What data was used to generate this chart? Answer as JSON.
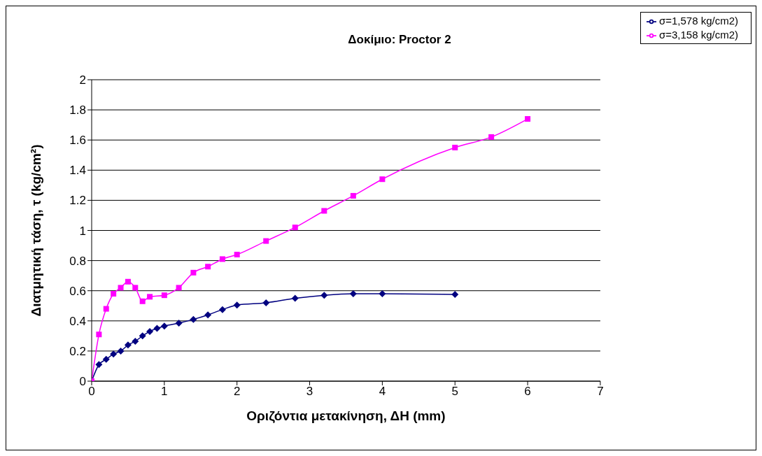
{
  "chart_data": {
    "type": "line",
    "title": "Δοκίμιο: Proctor 2",
    "xlabel": "Οριζόντια μετακίνηση, ΔΗ (mm)",
    "ylabel": "Διατμητική τάση, τ (kg/cm²)",
    "xlim": [
      0,
      7
    ],
    "xticks": [
      0,
      1,
      2,
      3,
      4,
      5,
      6,
      7
    ],
    "ylim": [
      0,
      2
    ],
    "yticks": [
      0,
      0.2,
      0.4,
      0.6,
      0.8,
      1,
      1.2,
      1.4,
      1.6,
      1.8,
      2
    ],
    "grid": "y",
    "legend": "top right",
    "line_style": "solid",
    "series": [
      {
        "name": "σ=1,578 kg/cm2)",
        "color": "#000080",
        "marker": "diamond",
        "x": [
          0,
          0.1,
          0.2,
          0.3,
          0.4,
          0.5,
          0.6,
          0.7,
          0.8,
          0.9,
          1,
          1.2,
          1.4,
          1.6,
          1.8,
          2,
          2.4,
          2.8,
          3.2,
          3.6,
          4,
          5
        ],
        "values": [
          0,
          0.11,
          0.145,
          0.18,
          0.2,
          0.24,
          0.265,
          0.3,
          0.33,
          0.35,
          0.365,
          0.385,
          0.41,
          0.44,
          0.475,
          0.505,
          0.52,
          0.55,
          0.57,
          0.58,
          0.58,
          0.575
        ]
      },
      {
        "name": "σ=3,158 kg/cm2)",
        "color": "#ff00ff",
        "marker": "square",
        "x": [
          0,
          0.1,
          0.2,
          0.3,
          0.4,
          0.5,
          0.6,
          0.7,
          0.8,
          1,
          1.2,
          1.4,
          1.6,
          1.8,
          2,
          2.4,
          2.8,
          3.2,
          3.6,
          4,
          5,
          5.5,
          6
        ],
        "values": [
          0,
          0.31,
          0.48,
          0.58,
          0.62,
          0.66,
          0.62,
          0.53,
          0.56,
          0.57,
          0.62,
          0.72,
          0.76,
          0.81,
          0.84,
          0.93,
          1.02,
          1.13,
          1.23,
          1.34,
          1.55,
          1.62,
          1.74
        ]
      }
    ]
  }
}
